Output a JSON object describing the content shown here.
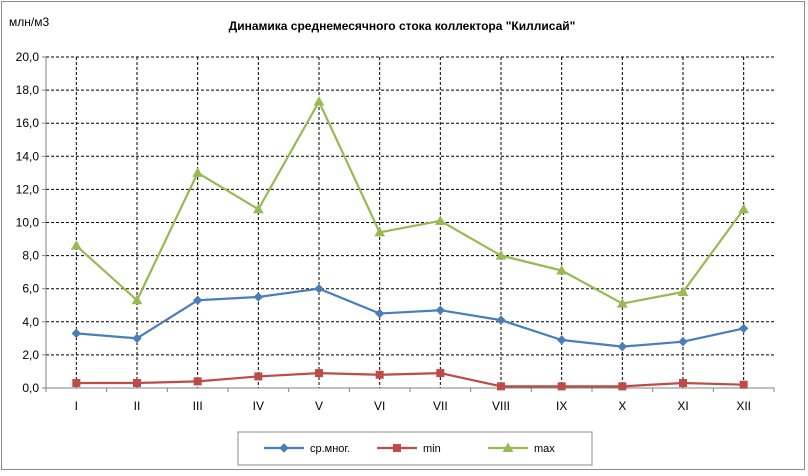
{
  "chart_data": {
    "type": "line",
    "title": "Динамика среднемесячного стока коллектора \"Киллисай\"",
    "ylabel": "млн/м3",
    "xlabel": "",
    "categories": [
      "I",
      "II",
      "III",
      "IV",
      "V",
      "VI",
      "VII",
      "VIII",
      "IX",
      "X",
      "XI",
      "XII"
    ],
    "ylim": [
      0,
      20
    ],
    "yticks": [
      "0,0",
      "2,0",
      "4,0",
      "6,0",
      "8,0",
      "10,0",
      "12,0",
      "14,0",
      "16,0",
      "18,0",
      "20,0"
    ],
    "grid": true,
    "legend_position": "bottom",
    "series": [
      {
        "name": "ср.мног.",
        "marker": "diamond",
        "color": "#4a7ebb",
        "values": [
          3.3,
          3.0,
          5.3,
          5.5,
          6.0,
          4.5,
          4.7,
          4.1,
          2.9,
          2.5,
          2.8,
          3.6
        ]
      },
      {
        "name": "min",
        "marker": "square",
        "color": "#be4b48",
        "values": [
          0.3,
          0.3,
          0.4,
          0.7,
          0.9,
          0.8,
          0.9,
          0.1,
          0.1,
          0.1,
          0.3,
          0.2
        ]
      },
      {
        "name": "max",
        "marker": "triangle",
        "color": "#98b954",
        "values": [
          8.6,
          5.3,
          13.0,
          10.8,
          17.3,
          9.4,
          10.1,
          8.0,
          7.1,
          5.1,
          5.8,
          10.8
        ]
      }
    ]
  }
}
